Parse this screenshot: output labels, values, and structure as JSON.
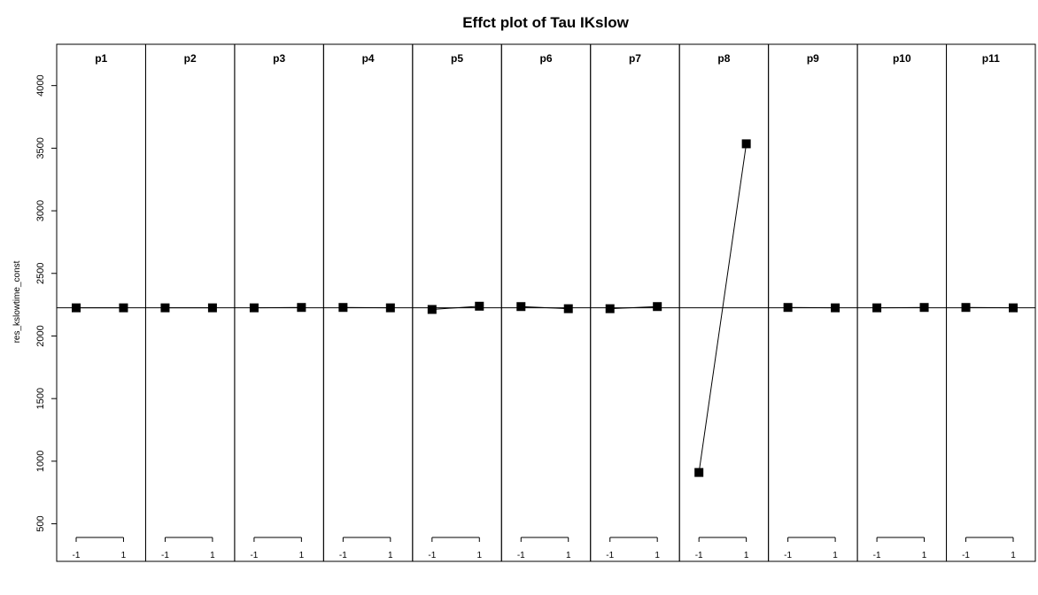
{
  "chart_data": {
    "type": "line",
    "title": "Effct plot of Tau IKslow",
    "ylabel": "res_kslowtime_const",
    "xlabel": "",
    "ylim": [
      200,
      4330
    ],
    "yticks": [
      500,
      1000,
      1500,
      2000,
      2500,
      3000,
      3500,
      4000
    ],
    "x_levels": [
      -1,
      1
    ],
    "x_tick_labels": [
      "-1",
      "1"
    ],
    "reference_line": 2225,
    "grid": false,
    "legend": "none",
    "marker": "filled-square",
    "panels": [
      {
        "name": "p1",
        "x": [
          -1,
          1
        ],
        "y": [
          2225,
          2225
        ]
      },
      {
        "name": "p2",
        "x": [
          -1,
          1
        ],
        "y": [
          2225,
          2225
        ]
      },
      {
        "name": "p3",
        "x": [
          -1,
          1
        ],
        "y": [
          2225,
          2228
        ]
      },
      {
        "name": "p4",
        "x": [
          -1,
          1
        ],
        "y": [
          2228,
          2225
        ]
      },
      {
        "name": "p5",
        "x": [
          -1,
          1
        ],
        "y": [
          2212,
          2238
        ]
      },
      {
        "name": "p6",
        "x": [
          -1,
          1
        ],
        "y": [
          2235,
          2218
        ]
      },
      {
        "name": "p7",
        "x": [
          -1,
          1
        ],
        "y": [
          2218,
          2235
        ]
      },
      {
        "name": "p8",
        "x": [
          -1,
          1
        ],
        "y": [
          910,
          3535
        ]
      },
      {
        "name": "p9",
        "x": [
          -1,
          1
        ],
        "y": [
          2228,
          2225
        ]
      },
      {
        "name": "p10",
        "x": [
          -1,
          1
        ],
        "y": [
          2225,
          2228
        ]
      },
      {
        "name": "p11",
        "x": [
          -1,
          1
        ],
        "y": [
          2228,
          2225
        ]
      }
    ]
  }
}
